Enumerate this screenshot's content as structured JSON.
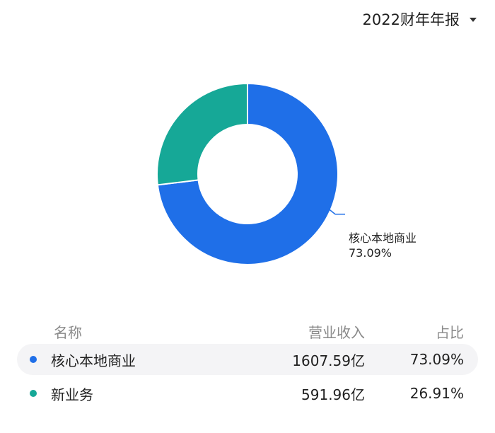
{
  "header": {
    "period_label": "2022财年年报"
  },
  "chart_data": {
    "type": "pie",
    "categories": [
      "核心本地商业",
      "新业务"
    ],
    "values": [
      73.09,
      26.91
    ],
    "colors": [
      "#1f6fe8",
      "#16a897"
    ],
    "donut": true,
    "annotation": {
      "name": "核心本地商业",
      "value": "73.09%"
    }
  },
  "table": {
    "headers": {
      "name": "名称",
      "revenue": "营业收入",
      "share": "占比"
    },
    "rows": [
      {
        "name": "核心本地商业",
        "revenue": "1607.59亿",
        "share": "73.09%",
        "color": "#1f6fe8"
      },
      {
        "name": "新业务",
        "revenue": "591.96亿",
        "share": "26.91%",
        "color": "#16a897"
      }
    ]
  }
}
